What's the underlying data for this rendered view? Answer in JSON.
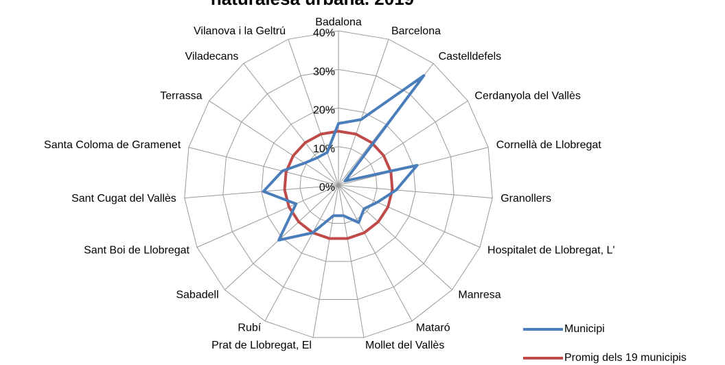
{
  "chart_data": {
    "type": "radar",
    "title": "naturalesa urbana. 2019",
    "categories": [
      "Badalona",
      "Barcelona",
      "Castelldefels",
      "Cerdanyola del Vallès",
      "Cornellà de Llobregat",
      "Granollers",
      "Hospitalet de Llobregat, L'",
      "Manresa",
      "Mataró",
      "Mollet del Vallès",
      "Prat de Llobregat, El",
      "Rubí",
      "Sabadell",
      "Sant Boi de Llobregat",
      "Sant Cugat del Vallès",
      "Santa Coloma de Gramenet",
      "Terrassa",
      "Viladecans",
      "Vilanova i la Geltrú"
    ],
    "series": [
      {
        "name": "Municipi",
        "color": "#4a7ebb",
        "values": [
          16,
          18,
          36,
          2,
          21,
          15,
          11,
          9,
          11,
          8,
          8,
          14,
          21,
          12,
          19.5,
          15,
          10.5,
          9,
          9
        ]
      },
      {
        "name": "Promig dels 19 municipis",
        "color": "#be4b48",
        "values": [
          14,
          14,
          14,
          14,
          14,
          14,
          14,
          14,
          14,
          14,
          14,
          14,
          14,
          14,
          14,
          14,
          14,
          14,
          14
        ]
      }
    ],
    "ylim": [
      0,
      40
    ],
    "yticks": [
      {
        "value": 0,
        "label": "0%"
      },
      {
        "value": 10,
        "label": "10%"
      },
      {
        "value": 20,
        "label": "20%"
      },
      {
        "value": 30,
        "label": "30%"
      },
      {
        "value": 40,
        "label": "40%"
      }
    ],
    "grid": true,
    "legend": "bottom-right"
  }
}
